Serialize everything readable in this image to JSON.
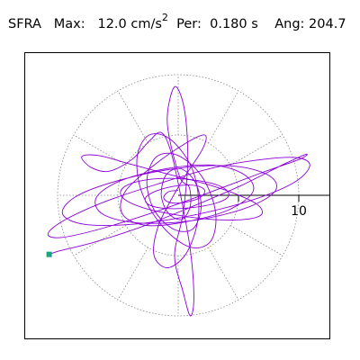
{
  "header": {
    "station": "SFRA",
    "max_label": "Max:",
    "max_value": "12.0 cm/s",
    "max_exp": "2",
    "per_label": "Per:",
    "per_value": "0.180 s",
    "ang_label": "Ang:",
    "ang_value": "204.7"
  },
  "colors": {
    "trace": "#8b00d9",
    "end_marker": "#1aa37f",
    "axis": "#000000",
    "grid": "#888888"
  },
  "chart_data": {
    "type": "scatter",
    "title": "SFRA   Max:  12.0 cm/s2  Per:  0.180 s   Ang: 204.7",
    "xlabel": "",
    "ylabel": "",
    "xlim": [
      -12,
      12
    ],
    "ylim": [
      -12,
      12
    ],
    "polar_grid": {
      "rings": [
        5,
        10
      ],
      "spokes_deg": [
        0,
        30,
        60,
        90,
        120,
        150,
        180,
        210,
        240,
        270,
        300,
        330
      ]
    },
    "axis_ticks": [
      {
        "value": 5,
        "label": ""
      },
      {
        "value": 10,
        "label": "10"
      }
    ],
    "end_point": {
      "x": -10.7,
      "y": -4.9
    },
    "series": [
      {
        "values": [
          [
            -10.7,
            -4.9
          ],
          [
            -9.8,
            -4.6
          ],
          [
            -7.0,
            -3.9
          ],
          [
            -3.0,
            -2.6
          ],
          [
            1.0,
            -1.0
          ],
          [
            5.2,
            0.8
          ],
          [
            8.8,
            2.6
          ],
          [
            10.6,
            3.4
          ],
          [
            10.1,
            3.0
          ],
          [
            7.0,
            1.9
          ],
          [
            2.5,
            0.2
          ],
          [
            -2.0,
            -1.4
          ],
          [
            -6.5,
            -2.8
          ],
          [
            -9.7,
            -3.5
          ],
          [
            -10.8,
            -3.2
          ],
          [
            -9.5,
            -2.1
          ],
          [
            -6.0,
            -0.5
          ],
          [
            -1.5,
            1.0
          ],
          [
            3.0,
            2.3
          ],
          [
            7.2,
            3.0
          ],
          [
            10.0,
            3.1
          ],
          [
            10.9,
            2.4
          ],
          [
            9.5,
            1.0
          ],
          [
            5.8,
            -0.5
          ],
          [
            1.0,
            -1.7
          ],
          [
            -3.8,
            -2.4
          ],
          [
            -7.8,
            -2.4
          ],
          [
            -9.6,
            -1.5
          ],
          [
            -8.3,
            0.0
          ],
          [
            -4.3,
            1.4
          ],
          [
            0.5,
            2.3
          ],
          [
            4.8,
            2.4
          ],
          [
            7.6,
            1.6
          ],
          [
            8.0,
            0.3
          ],
          [
            5.5,
            -1.1
          ],
          [
            1.2,
            -2.1
          ],
          [
            -3.2,
            -2.3
          ],
          [
            -6.2,
            -1.6
          ],
          [
            -6.8,
            -0.2
          ],
          [
            -4.8,
            1.2
          ],
          [
            -1.0,
            2.2
          ],
          [
            2.9,
            2.5
          ],
          [
            5.5,
            1.7
          ],
          [
            6.2,
            0.3
          ],
          [
            4.2,
            -1.2
          ],
          [
            0.6,
            -2.2
          ],
          [
            -2.6,
            -2.5
          ],
          [
            -4.6,
            -1.6
          ],
          [
            -4.4,
            0.3
          ],
          [
            -2.0,
            2.5
          ],
          [
            0.6,
            4.3
          ],
          [
            2.2,
            5.0
          ],
          [
            2.0,
            3.8
          ],
          [
            0.2,
            1.0
          ],
          [
            -1.6,
            -2.4
          ],
          [
            -2.0,
            -5.0
          ],
          [
            -0.8,
            -6.0
          ],
          [
            0.8,
            -4.6
          ],
          [
            1.7,
            -1.4
          ],
          [
            1.2,
            2.1
          ],
          [
            -0.6,
            4.6
          ],
          [
            -2.4,
            5.0
          ],
          [
            -3.4,
            3.2
          ],
          [
            -3.0,
            0.2
          ],
          [
            -1.2,
            -2.7
          ],
          [
            1.0,
            -4.3
          ],
          [
            2.7,
            -3.8
          ],
          [
            3.1,
            -1.4
          ],
          [
            2.0,
            1.5
          ],
          [
            0.0,
            3.3
          ],
          [
            -1.8,
            3.2
          ],
          [
            -2.6,
            1.2
          ],
          [
            -2.0,
            -1.2
          ],
          [
            -0.4,
            -2.8
          ],
          [
            1.2,
            -2.8
          ],
          [
            1.9,
            -1.0
          ],
          [
            1.4,
            1.1
          ],
          [
            0.2,
            2.2
          ],
          [
            -1.0,
            1.7
          ],
          [
            -1.4,
            0.0
          ],
          [
            -0.8,
            -1.5
          ],
          [
            0.3,
            -2.0
          ],
          [
            1.0,
            -0.9
          ],
          [
            0.9,
            0.7
          ],
          [
            0.1,
            1.6
          ],
          [
            -0.9,
            6.0
          ],
          [
            -0.3,
            9.0
          ],
          [
            0.5,
            7.2
          ],
          [
            0.8,
            3.0
          ],
          [
            0.4,
            -1.5
          ],
          [
            -0.3,
            -5.0
          ],
          [
            0.4,
            -8.0
          ],
          [
            1.0,
            -10.0
          ],
          [
            1.3,
            -8.5
          ],
          [
            1.0,
            -4.5
          ],
          [
            0.2,
            0.0
          ],
          [
            -0.6,
            3.6
          ],
          [
            -1.4,
            5.2
          ],
          [
            -2.4,
            4.5
          ],
          [
            -3.8,
            3.0
          ],
          [
            -5.7,
            2.0
          ],
          [
            -7.2,
            2.3
          ],
          [
            -8.0,
            3.2
          ],
          [
            -6.6,
            3.3
          ],
          [
            -4.0,
            2.6
          ],
          [
            -1.0,
            1.8
          ],
          [
            2.1,
            1.0
          ],
          [
            4.8,
            0.1
          ],
          [
            6.6,
            -0.8
          ],
          [
            6.9,
            -1.6
          ],
          [
            5.5,
            -2.0
          ],
          [
            2.8,
            -2.0
          ],
          [
            -0.3,
            -1.6
          ],
          [
            -3.0,
            -1.0
          ],
          [
            -4.6,
            -0.2
          ],
          [
            -4.6,
            0.6
          ],
          [
            -3.1,
            1.2
          ],
          [
            -0.7,
            1.4
          ],
          [
            1.8,
            1.2
          ],
          [
            3.6,
            0.7
          ],
          [
            4.2,
            0.0
          ],
          [
            3.3,
            -0.6
          ],
          [
            1.3,
            -1.0
          ],
          [
            -0.9,
            -1.1
          ],
          [
            -2.4,
            -0.8
          ],
          [
            -2.7,
            -0.2
          ],
          [
            -1.7,
            0.4
          ],
          [
            0.0,
            0.8
          ],
          [
            1.5,
            0.8
          ],
          [
            2.2,
            0.4
          ],
          [
            1.8,
            -0.2
          ],
          [
            0.5,
            -0.6
          ],
          [
            -0.7,
            -0.6
          ],
          [
            -1.2,
            -0.2
          ],
          [
            -0.8,
            0.3
          ],
          [
            0.0,
            0.4
          ]
        ]
      }
    ]
  }
}
